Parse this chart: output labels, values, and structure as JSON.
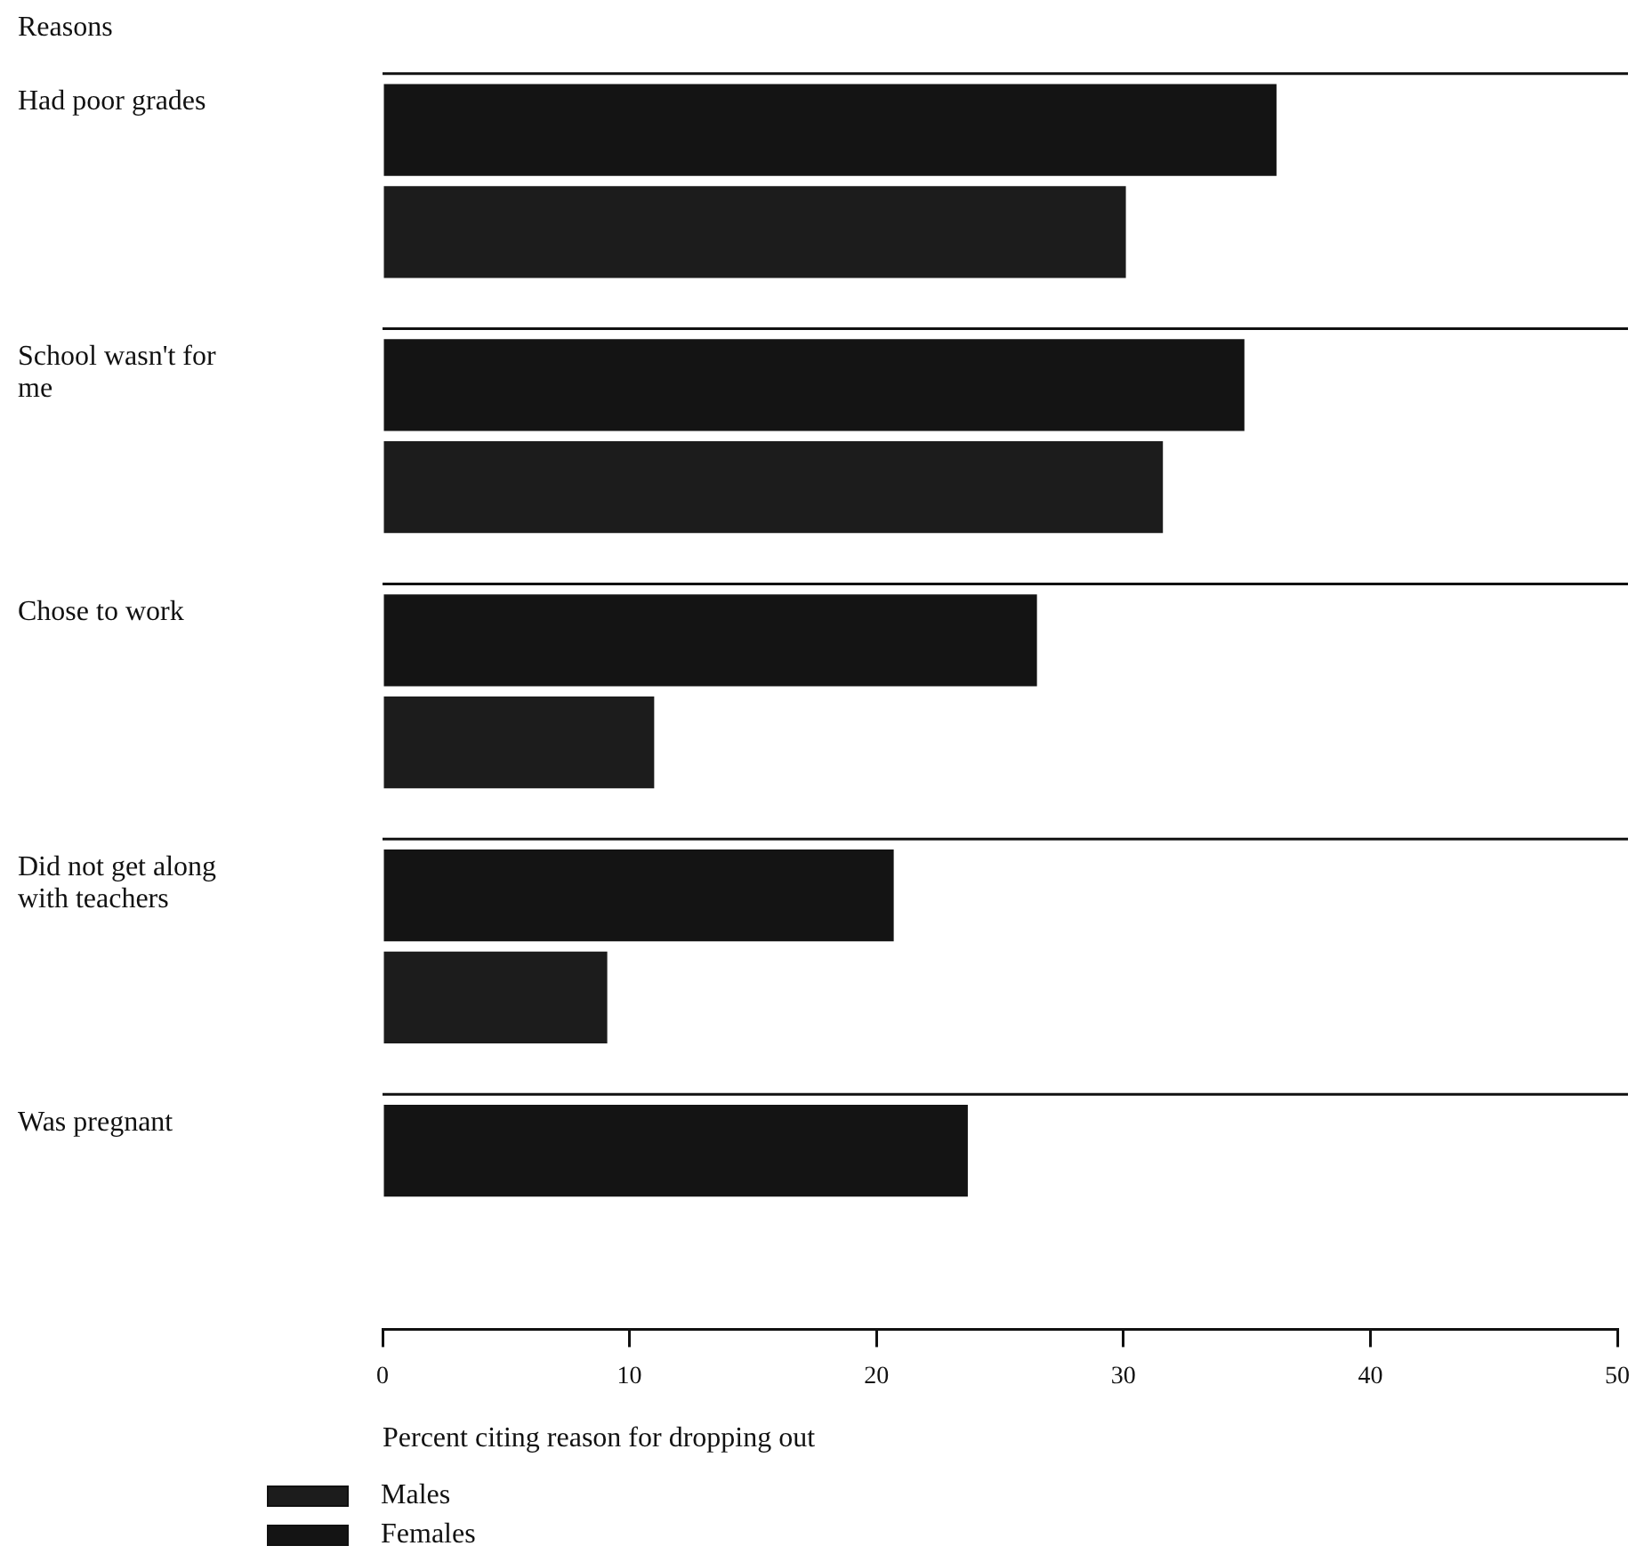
{
  "chart_data": {
    "type": "bar",
    "orientation": "horizontal",
    "ylabel": "Reasons",
    "xlabel": "Percent citing reason for dropping out",
    "categories": [
      "Had poor grades",
      "School wasn't for me",
      "Chose to work",
      "Did not get along with teachers",
      "Was pregnant"
    ],
    "series": [
      {
        "name": "Males",
        "color": "#1c1c1c",
        "values": [
          30.1,
          31.6,
          11.0,
          9.1,
          null
        ]
      },
      {
        "name": "Females",
        "color": "#141414",
        "values": [
          36.2,
          34.9,
          26.5,
          20.7,
          23.7
        ]
      }
    ],
    "xlim": [
      0,
      50
    ],
    "xticks": [
      0,
      10,
      20,
      30,
      40,
      50
    ],
    "legend": "bottom left"
  }
}
